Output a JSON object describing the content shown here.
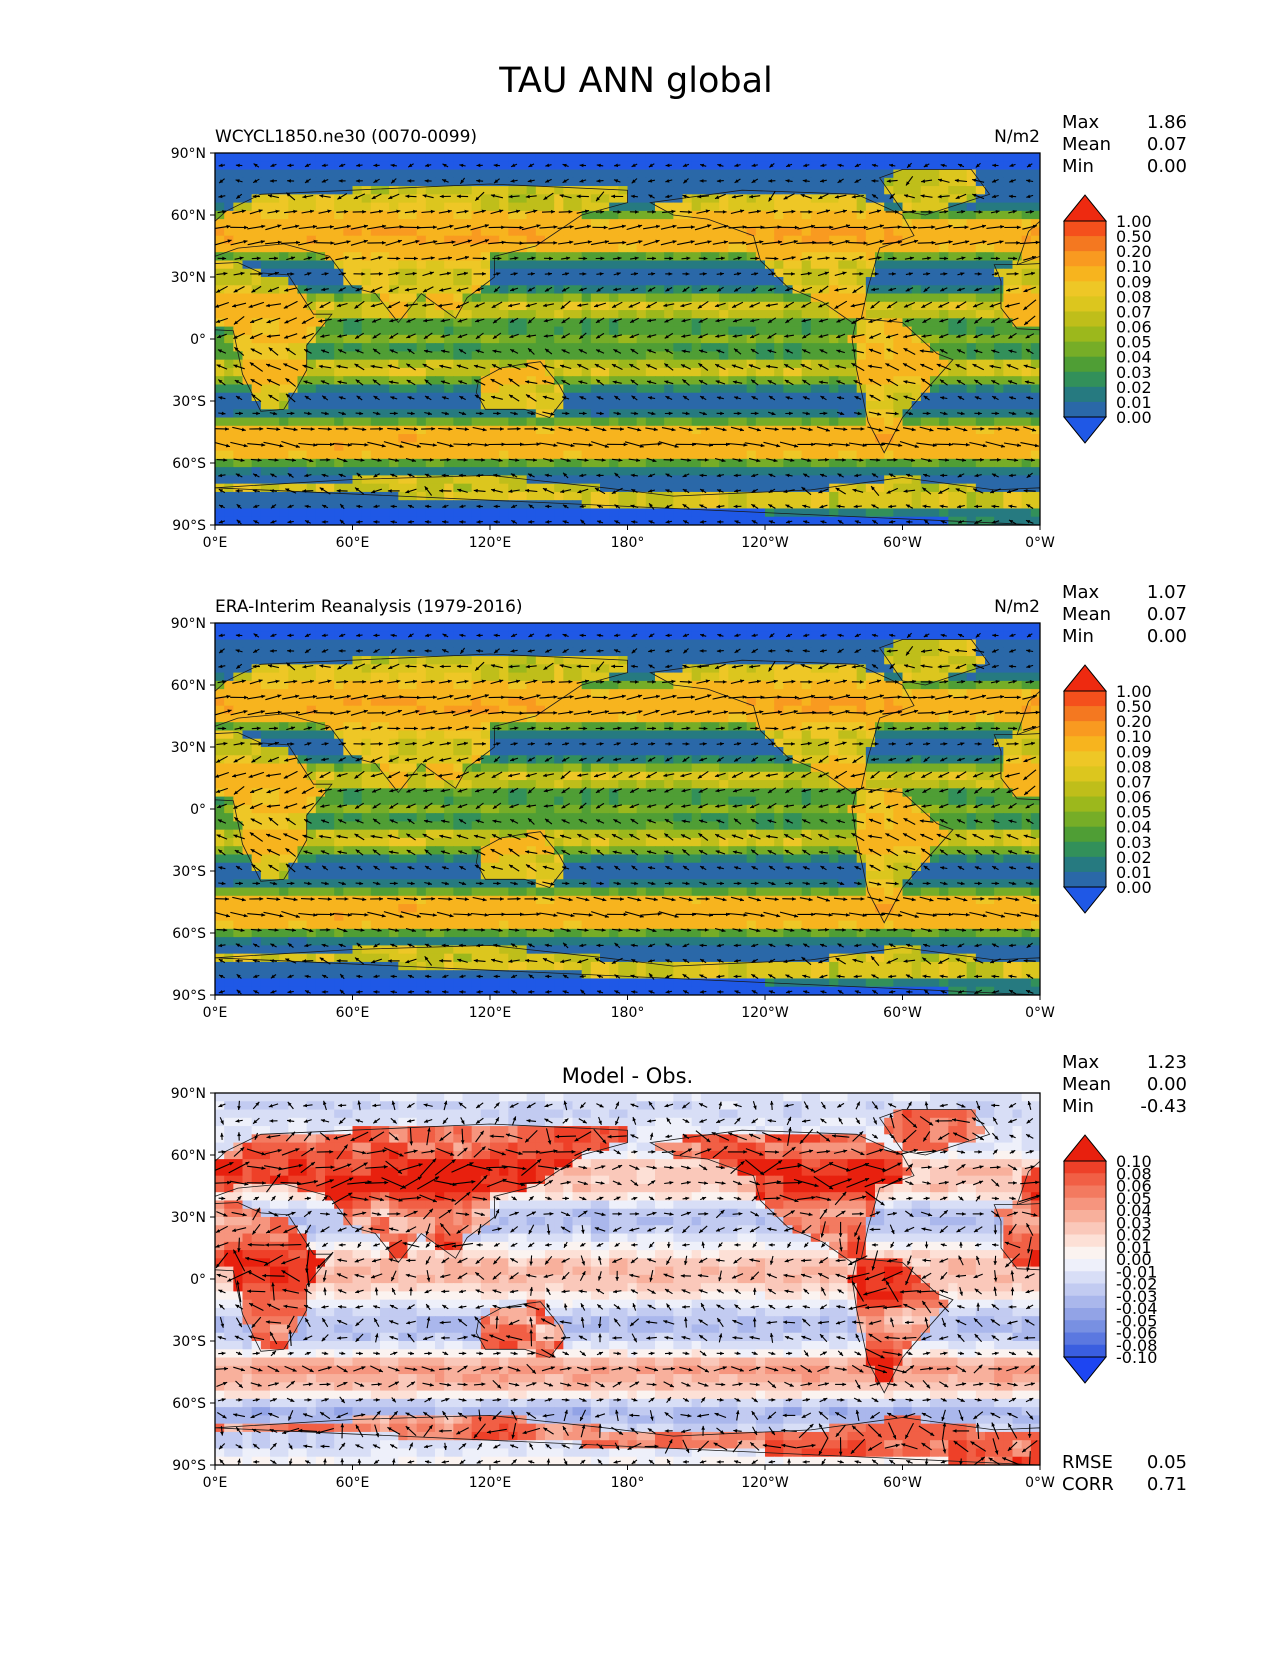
{
  "figure": {
    "title": "TAU ANN global",
    "colors": {
      "frame": "#000000",
      "arrow": "#000000",
      "land_line": "#1a1a1a"
    }
  },
  "chart_data": [
    {
      "type": "heatmap",
      "overlay": "vector",
      "left_label": "WCYCL1850.ne30 (0070-0099)",
      "center_title": "",
      "units": "N/m2",
      "stats": [
        {
          "label": "Max",
          "value": "1.86"
        },
        {
          "label": "Mean",
          "value": "0.07"
        },
        {
          "label": "Min",
          "value": "0.00"
        }
      ],
      "footer_stats": [],
      "x_ticks": [
        "0°E",
        "60°E",
        "120°E",
        "180°",
        "120°W",
        "60°W",
        "0°W"
      ],
      "y_ticks": [
        "90°N",
        "60°N",
        "30°N",
        "0°",
        "30°S",
        "60°S",
        "90°S"
      ],
      "xlim": [
        0,
        360
      ],
      "ylim": [
        -90,
        90
      ],
      "field": "magnitude",
      "colorbar": {
        "labels": [
          "1.00",
          "0.50",
          "0.20",
          "0.10",
          "0.09",
          "0.08",
          "0.07",
          "0.06",
          "0.05",
          "0.04",
          "0.03",
          "0.02",
          "0.01",
          "0.00"
        ],
        "colors": [
          "#ee2a10",
          "#f4501c",
          "#f47820",
          "#f99a20",
          "#f7b41e",
          "#eec726",
          "#dcc61e",
          "#bfbe1a",
          "#9cb81c",
          "#76ad27",
          "#4f9e35",
          "#32905a",
          "#267a80",
          "#2a68a8",
          "#1f58e6"
        ],
        "extend": "both"
      }
    },
    {
      "type": "heatmap",
      "overlay": "vector",
      "left_label": "ERA-Interim Reanalysis (1979-2016)",
      "center_title": "",
      "units": "N/m2",
      "stats": [
        {
          "label": "Max",
          "value": "1.07"
        },
        {
          "label": "Mean",
          "value": "0.07"
        },
        {
          "label": "Min",
          "value": "0.00"
        }
      ],
      "footer_stats": [],
      "x_ticks": [
        "0°E",
        "60°E",
        "120°E",
        "180°",
        "120°W",
        "60°W",
        "0°W"
      ],
      "y_ticks": [
        "90°N",
        "60°N",
        "30°N",
        "0°",
        "30°S",
        "60°S",
        "90°S"
      ],
      "xlim": [
        0,
        360
      ],
      "ylim": [
        -90,
        90
      ],
      "field": "magnitude",
      "colorbar": {
        "labels": [
          "1.00",
          "0.50",
          "0.20",
          "0.10",
          "0.09",
          "0.08",
          "0.07",
          "0.06",
          "0.05",
          "0.04",
          "0.03",
          "0.02",
          "0.01",
          "0.00"
        ],
        "colors": [
          "#ee2a10",
          "#f4501c",
          "#f47820",
          "#f99a20",
          "#f7b41e",
          "#eec726",
          "#dcc61e",
          "#bfbe1a",
          "#9cb81c",
          "#76ad27",
          "#4f9e35",
          "#32905a",
          "#267a80",
          "#2a68a8",
          "#1f58e6"
        ],
        "extend": "both"
      }
    },
    {
      "type": "heatmap",
      "overlay": "vector",
      "left_label": "",
      "center_title": "Model - Obs.",
      "units": "",
      "stats": [
        {
          "label": "Max",
          "value": "1.23"
        },
        {
          "label": "Mean",
          "value": "0.00"
        },
        {
          "label": "Min",
          "value": "-0.43"
        }
      ],
      "footer_stats": [
        {
          "label": "RMSE",
          "value": "0.05"
        },
        {
          "label": "CORR",
          "value": "0.71"
        }
      ],
      "x_ticks": [
        "0°E",
        "60°E",
        "120°E",
        "180°",
        "120°W",
        "60°W",
        "0°W"
      ],
      "y_ticks": [
        "90°N",
        "60°N",
        "30°N",
        "0°",
        "30°S",
        "60°S",
        "90°S"
      ],
      "xlim": [
        0,
        360
      ],
      "ylim": [
        -90,
        90
      ],
      "field": "difference",
      "colorbar": {
        "labels": [
          "0.10",
          "0.08",
          "0.06",
          "0.05",
          "0.04",
          "0.03",
          "0.02",
          "0.01",
          "0.00",
          "-0.01",
          "-0.02",
          "-0.03",
          "-0.04",
          "-0.05",
          "-0.06",
          "-0.08",
          "-0.10"
        ],
        "colors": [
          "#e8200e",
          "#ee4028",
          "#f15f45",
          "#f37a60",
          "#f6957e",
          "#f8b09c",
          "#fac8ba",
          "#fde0d6",
          "#fbf3f0",
          "#eef0fa",
          "#d8def6",
          "#c2cbf1",
          "#aab7ec",
          "#92a3e6",
          "#7890e2",
          "#5b78e0",
          "#3a5ee0",
          "#1d45f2"
        ],
        "extend": "both"
      }
    }
  ]
}
